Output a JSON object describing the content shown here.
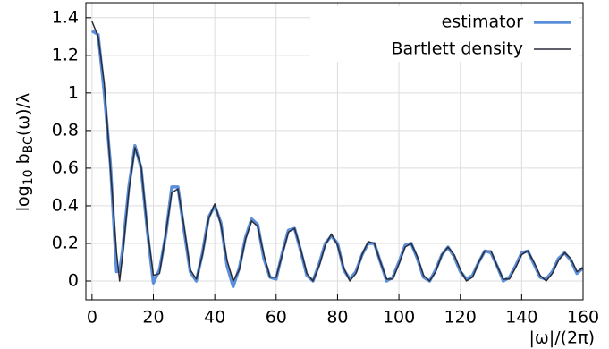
{
  "chart_data": {
    "type": "line",
    "ylabel_parts": [
      "log",
      "10",
      " b",
      "BC",
      "(ω)/λ"
    ],
    "xlabel": "|ω|/(2π)",
    "x": [
      0,
      2,
      4,
      6,
      8,
      9,
      10,
      12,
      14,
      16,
      18,
      20,
      22,
      24,
      26,
      28,
      30,
      32,
      34,
      36,
      38,
      40,
      42,
      44,
      46,
      48,
      50,
      52,
      54,
      56,
      58,
      60,
      62,
      64,
      66,
      68,
      70,
      72,
      74,
      76,
      78,
      80,
      82,
      84,
      86,
      88,
      90,
      92,
      94,
      96,
      98,
      100,
      102,
      104,
      106,
      108,
      110,
      112,
      114,
      116,
      118,
      120,
      122,
      124,
      126,
      128,
      130,
      132,
      134,
      136,
      138,
      140,
      142,
      144,
      146,
      148,
      150,
      152,
      154,
      156,
      158,
      160
    ],
    "series": [
      {
        "name": "estimator",
        "color": "#5b8fd9",
        "width": 3.5,
        "values": [
          1.33,
          1.31,
          1.0,
          0.62,
          0.05,
          0.05,
          0.17,
          0.5,
          0.72,
          0.6,
          0.27,
          -0.01,
          0.06,
          0.24,
          0.5,
          0.5,
          0.27,
          0.05,
          0.0,
          0.15,
          0.34,
          0.4,
          0.31,
          0.08,
          -0.03,
          0.07,
          0.23,
          0.33,
          0.3,
          0.12,
          0.02,
          0.01,
          0.15,
          0.27,
          0.28,
          0.16,
          0.03,
          0.0,
          0.09,
          0.2,
          0.24,
          0.2,
          0.06,
          0.01,
          0.05,
          0.14,
          0.2,
          0.2,
          0.1,
          0.0,
          0.02,
          0.1,
          0.19,
          0.2,
          0.12,
          0.02,
          0.0,
          0.06,
          0.14,
          0.18,
          0.13,
          0.05,
          0.01,
          0.03,
          0.1,
          0.16,
          0.15,
          0.08,
          0.0,
          0.02,
          0.08,
          0.15,
          0.16,
          0.09,
          0.02,
          0.01,
          0.05,
          0.12,
          0.15,
          0.11,
          0.04,
          0.07
        ]
      },
      {
        "name": "Bartlett density",
        "color": "#2b2b38",
        "width": 1.5,
        "values": [
          1.38,
          1.3,
          1.05,
          0.6,
          0.15,
          0.0,
          0.14,
          0.48,
          0.71,
          0.61,
          0.28,
          0.03,
          0.04,
          0.25,
          0.47,
          0.49,
          0.29,
          0.06,
          0.01,
          0.14,
          0.33,
          0.41,
          0.3,
          0.11,
          0.0,
          0.06,
          0.22,
          0.32,
          0.29,
          0.14,
          0.02,
          0.02,
          0.14,
          0.26,
          0.28,
          0.17,
          0.04,
          0.0,
          0.08,
          0.19,
          0.25,
          0.19,
          0.07,
          0.0,
          0.04,
          0.14,
          0.21,
          0.2,
          0.1,
          0.01,
          0.01,
          0.09,
          0.18,
          0.2,
          0.13,
          0.03,
          0.0,
          0.05,
          0.14,
          0.18,
          0.14,
          0.06,
          0.0,
          0.02,
          0.1,
          0.16,
          0.16,
          0.08,
          0.01,
          0.01,
          0.07,
          0.14,
          0.16,
          0.1,
          0.03,
          0.0,
          0.04,
          0.11,
          0.15,
          0.12,
          0.05,
          0.07
        ]
      }
    ],
    "xlim": [
      -2,
      160
    ],
    "ylim": [
      -0.1,
      1.48
    ],
    "xticks": [
      0,
      20,
      40,
      60,
      80,
      100,
      120,
      140,
      160
    ],
    "yticks": [
      0,
      0.2,
      0.4,
      0.6,
      0.8,
      1,
      1.2,
      1.4
    ],
    "grid": true,
    "legend": "upper right"
  }
}
